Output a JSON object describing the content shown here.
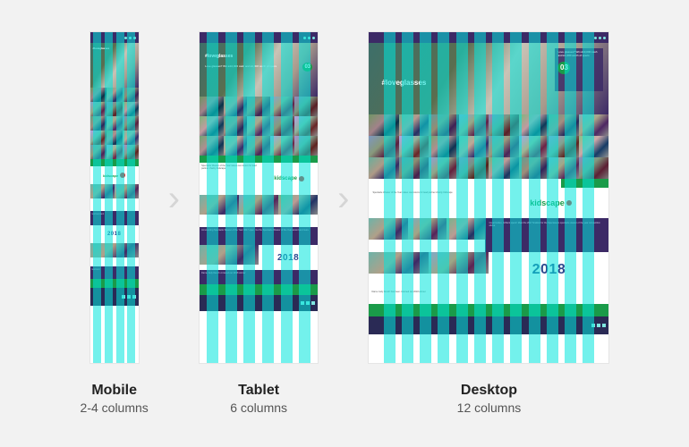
{
  "hashtag": "#loveglasses",
  "year": "2018",
  "kidscape": "kidscape",
  "devices": [
    {
      "title": "Mobile",
      "sub": "2-4 columns",
      "num_cols": 4,
      "faces": 15
    },
    {
      "title": "Tablet",
      "sub": "6 columns",
      "num_cols": 6,
      "faces": 15
    },
    {
      "title": "Desktop",
      "sub": "12 columns",
      "num_cols": 12,
      "faces": 24
    }
  ],
  "overlay_color": "rgba(0,230,220,0.55)",
  "chevron_color": "#d5d5d5",
  "background_color": "#f2f2f2",
  "brand_purple": "#3c2a66",
  "brand_green": "#1a9b49",
  "brand_navy": "#2e4b8f",
  "face_count_mobile": 15,
  "face_count_tablet": 15,
  "face_count_desktop": 24
}
